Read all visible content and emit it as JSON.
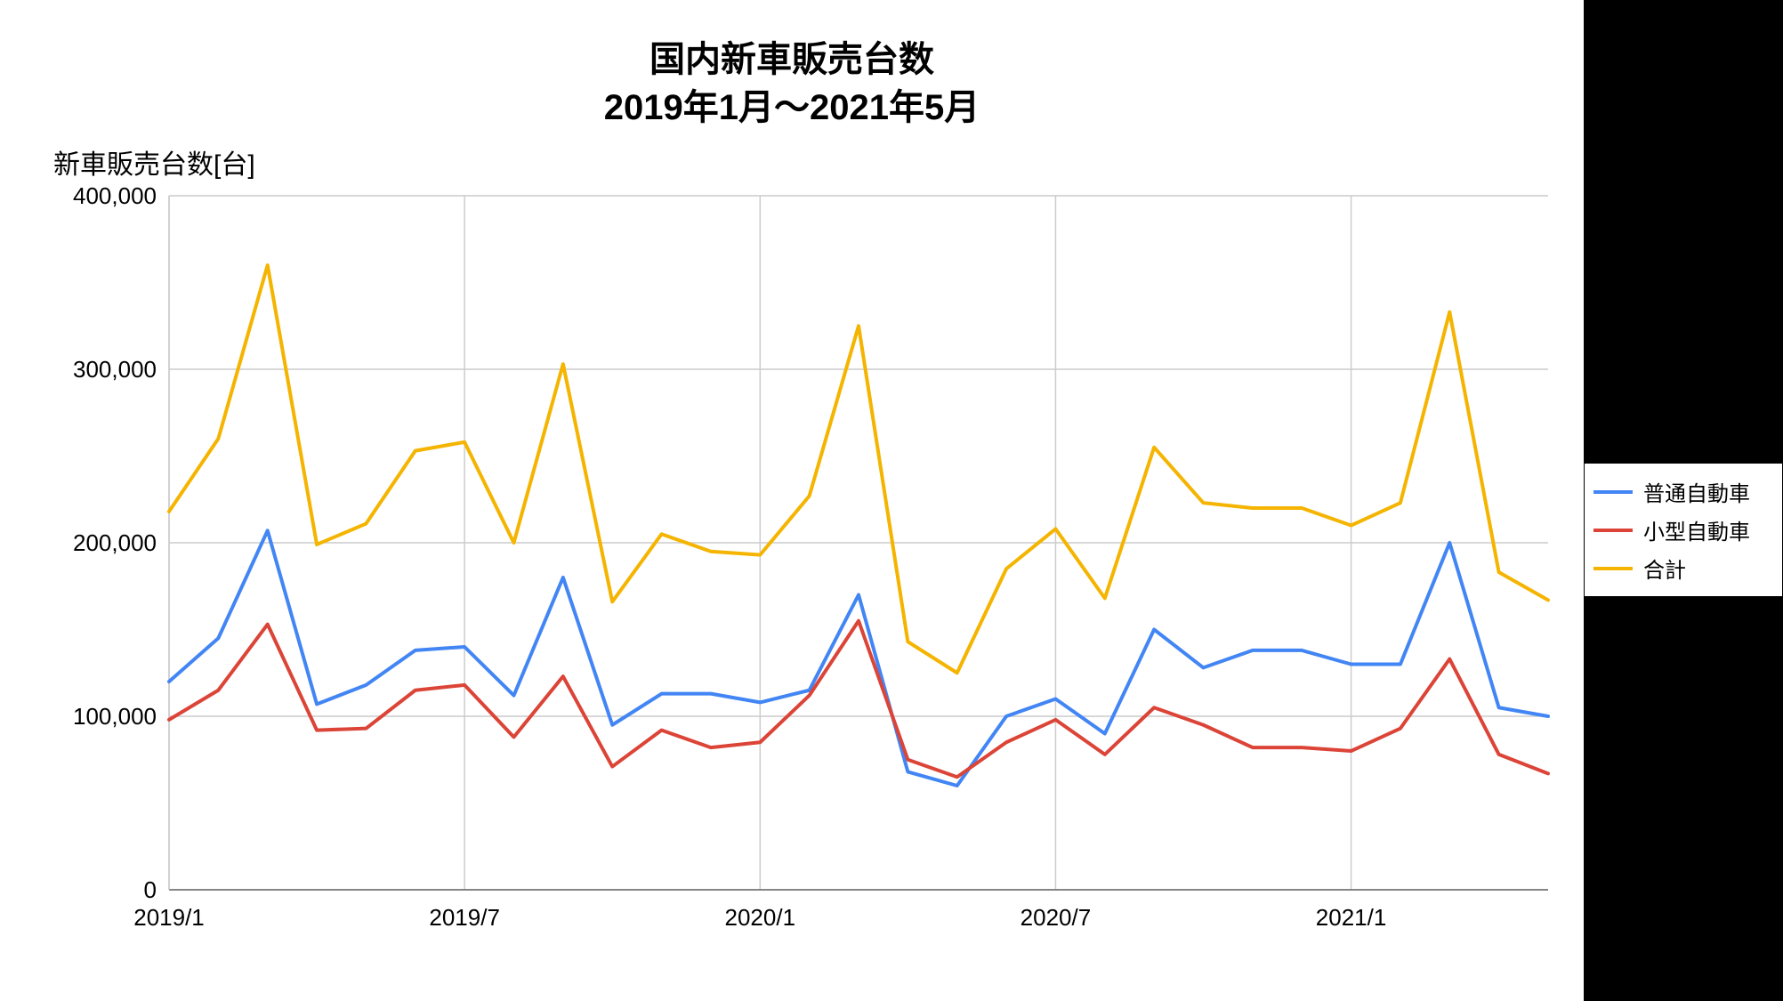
{
  "chart": {
    "type": "line",
    "title_line1": "国内新車販売台数",
    "title_line2": "2019年1月～2021年5月",
    "y_axis_label": "新車販売台数[台]",
    "background_color": "#ffffff",
    "page_background_color": "#000000",
    "grid_color": "#cccccc",
    "axis_color": "#666666",
    "text_color": "#000000",
    "title_fontsize": 40,
    "axis_fontsize": 26,
    "legend_fontsize": 24,
    "line_width": 4,
    "y_min": 0,
    "y_max": 400000,
    "y_tick_step": 100000,
    "y_tick_labels": [
      "0",
      "100,000",
      "200,000",
      "300,000",
      "400,000"
    ],
    "x_categories": [
      "2019/1",
      "2019/2",
      "2019/3",
      "2019/4",
      "2019/5",
      "2019/6",
      "2019/7",
      "2019/8",
      "2019/9",
      "2019/10",
      "2019/11",
      "2019/12",
      "2020/1",
      "2020/2",
      "2020/3",
      "2020/4",
      "2020/5",
      "2020/6",
      "2020/7",
      "2020/8",
      "2020/9",
      "2020/10",
      "2020/11",
      "2020/12",
      "2021/1",
      "2021/2",
      "2021/3",
      "2021/4",
      "2021/5"
    ],
    "x_tick_indices": [
      0,
      6,
      12,
      18,
      24
    ],
    "x_tick_labels": [
      "2019/1",
      "2019/7",
      "2020/1",
      "2020/7",
      "2021/1"
    ],
    "series": [
      {
        "name": "普通自動車",
        "color": "#4285f4",
        "values": [
          120000,
          145000,
          207000,
          107000,
          118000,
          138000,
          140000,
          112000,
          180000,
          95000,
          113000,
          113000,
          108000,
          115000,
          170000,
          68000,
          60000,
          100000,
          110000,
          90000,
          150000,
          128000,
          138000,
          138000,
          130000,
          130000,
          200000,
          105000,
          100000
        ]
      },
      {
        "name": "小型自動車",
        "color": "#db4437",
        "values": [
          98000,
          115000,
          153000,
          92000,
          93000,
          115000,
          118000,
          88000,
          123000,
          71000,
          92000,
          82000,
          85000,
          112000,
          155000,
          75000,
          65000,
          85000,
          98000,
          78000,
          105000,
          95000,
          82000,
          82000,
          80000,
          93000,
          133000,
          78000,
          67000
        ]
      },
      {
        "name": "合計",
        "color": "#f4b400",
        "values": [
          218000,
          260000,
          360000,
          199000,
          211000,
          253000,
          258000,
          200000,
          303000,
          166000,
          205000,
          195000,
          193000,
          227000,
          325000,
          143000,
          125000,
          185000,
          208000,
          168000,
          255000,
          223000,
          220000,
          220000,
          210000,
          223000,
          333000,
          183000,
          167000
        ]
      }
    ],
    "legend": {
      "border_color": "#000000",
      "background_color": "#ffffff"
    }
  }
}
